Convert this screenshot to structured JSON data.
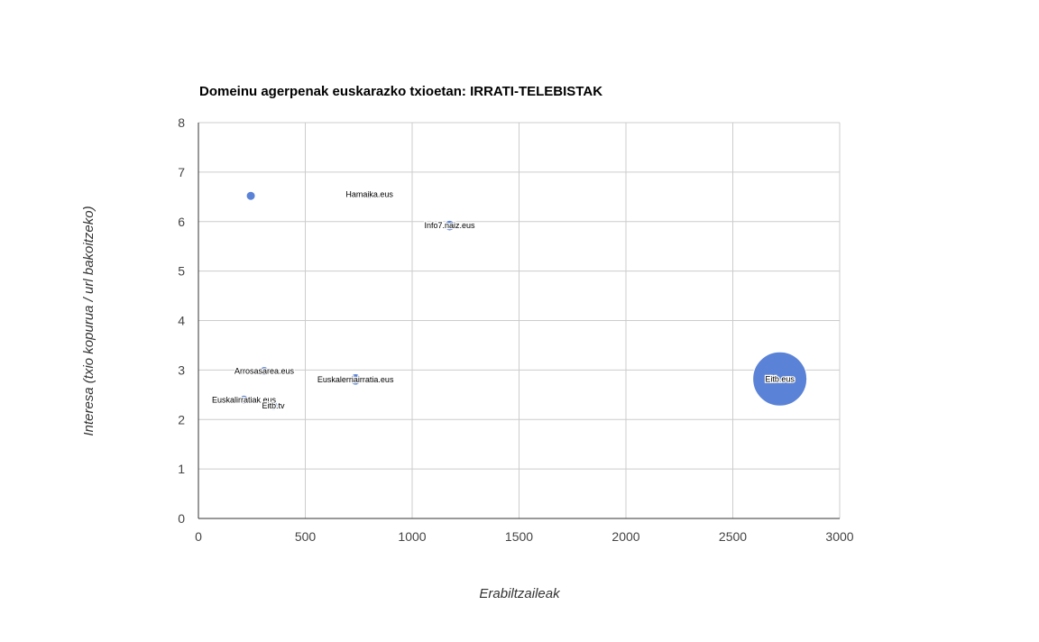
{
  "chart_data": {
    "type": "bubble",
    "title": "Domeinu agerpenak euskarazko txioetan: IRRATI-TELEBISTAK",
    "xlabel": "Erabiltzaileak",
    "ylabel": "Interesa (txio kopurua / url bakoitzeko)",
    "xlim": [
      0,
      3000
    ],
    "ylim": [
      0,
      8
    ],
    "x_ticks": [
      0,
      500,
      1000,
      1500,
      2000,
      2500,
      3000
    ],
    "y_ticks": [
      0,
      1,
      2,
      3,
      4,
      5,
      6,
      7,
      8
    ],
    "grid": true,
    "bubble_color": "#5a82d6",
    "points": [
      {
        "label": "",
        "x": 245,
        "y": 6.52,
        "size": 1
      },
      {
        "label": "Hamaika.eus",
        "x": 800,
        "y": 6.55,
        "size": 2
      },
      {
        "label": "Info7.naiz.eus",
        "x": 1175,
        "y": 5.92,
        "size": 6
      },
      {
        "label": "Arrosasarea.eus",
        "x": 308,
        "y": 2.98,
        "size": 2
      },
      {
        "label": "Euskalerriairratia.eus",
        "x": 735,
        "y": 2.81,
        "size": 7
      },
      {
        "label": "Euskalirratiak.eus",
        "x": 213,
        "y": 2.4,
        "size": 2
      },
      {
        "label": "Eitb.tv",
        "x": 350,
        "y": 2.28,
        "size": 1
      },
      {
        "label": "Eitb.eus",
        "x": 2720,
        "y": 2.82,
        "size": 160
      }
    ]
  }
}
